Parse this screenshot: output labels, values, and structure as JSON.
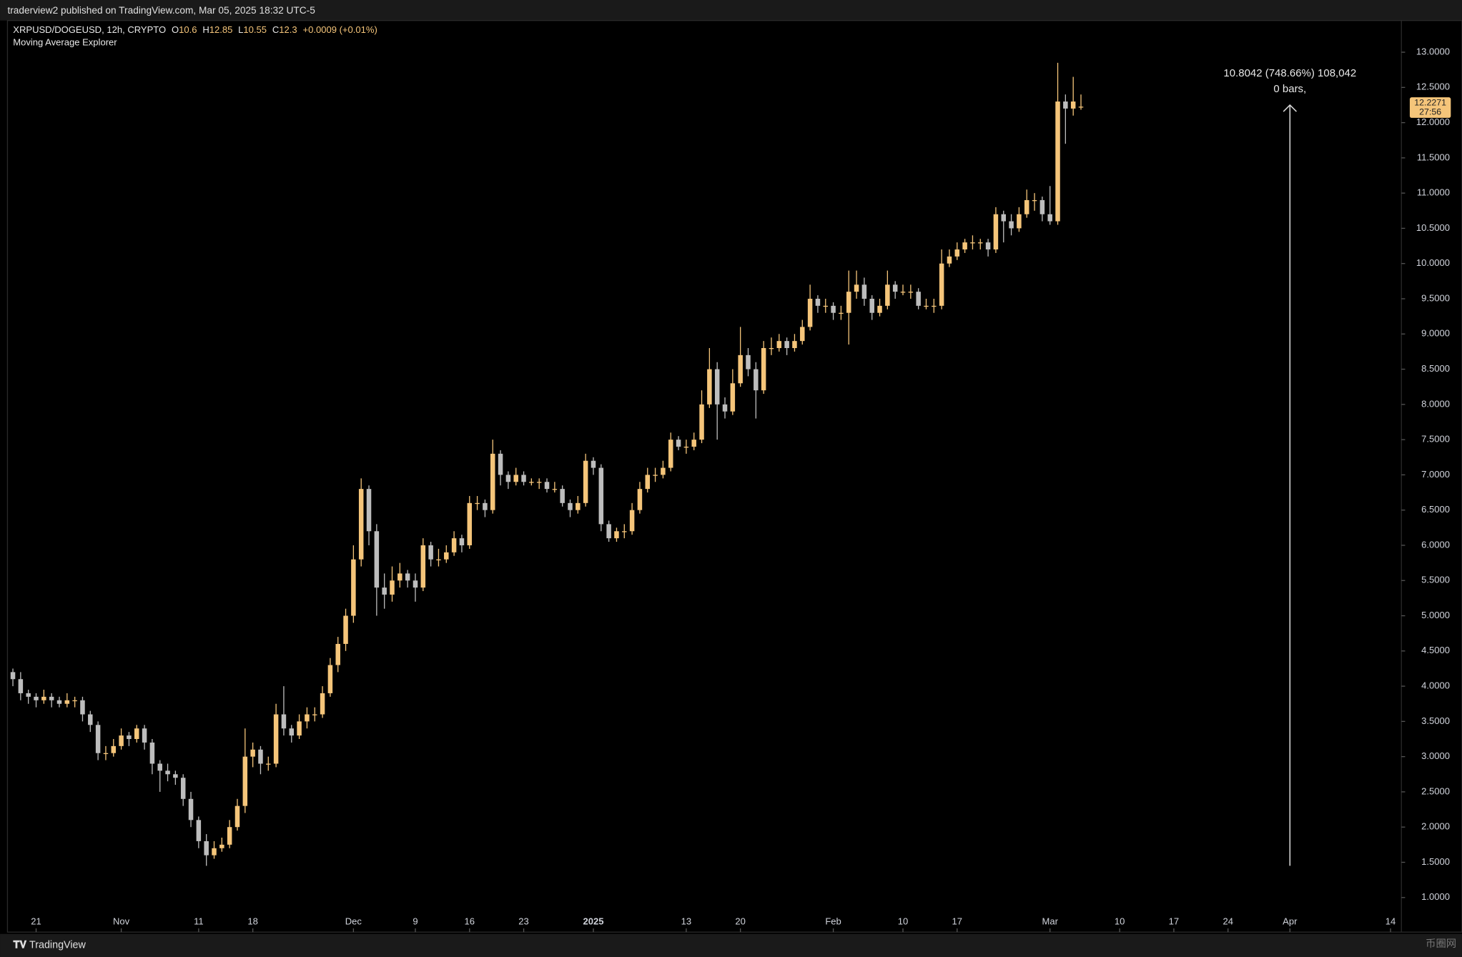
{
  "header": {
    "publisher": "traderview2 published on TradingView.com, Mar 05, 2025 18:32 UTC-5",
    "symbol": "XRPUSD/DOGEUSD, 12h, CRYPTO",
    "change": "+0.0009 (+0.01%)",
    "indicator": "Moving Average Explorer"
  },
  "chart_data": {
    "type": "candlestick",
    "ohlc_labels": [
      "O",
      "H",
      "L",
      "C"
    ],
    "up_color": "#f5c57a",
    "down_color": "#bdbdbd",
    "xlim": [
      -3.7,
      176.4
    ],
    "ylim": [
      0.8,
      13.45
    ],
    "xticks": [
      {
        "value": 0,
        "label": "21"
      },
      {
        "value": 11,
        "label": "Nov"
      },
      {
        "value": 21,
        "label": "11"
      },
      {
        "value": 28,
        "label": "18"
      },
      {
        "value": 41,
        "label": "Dec"
      },
      {
        "value": 49,
        "label": "9"
      },
      {
        "value": 56,
        "label": "16"
      },
      {
        "value": 63,
        "label": "23"
      },
      {
        "value": 72,
        "label": "2025"
      },
      {
        "value": 84,
        "label": "13"
      },
      {
        "value": 91,
        "label": "20"
      },
      {
        "value": 103,
        "label": "Feb"
      },
      {
        "value": 112,
        "label": "10"
      },
      {
        "value": 119,
        "label": "17"
      },
      {
        "value": 131,
        "label": "Mar"
      },
      {
        "value": 140,
        "label": "10"
      },
      {
        "value": 147,
        "label": "17"
      },
      {
        "value": 154,
        "label": "24"
      },
      {
        "value": 162,
        "label": "Apr"
      },
      {
        "value": 175,
        "label": "14"
      }
    ],
    "yticks": [
      {
        "value": 1,
        "label": "1.0000"
      },
      {
        "value": 1.5,
        "label": "1.5000"
      },
      {
        "value": 2,
        "label": "2.0000"
      },
      {
        "value": 2.5,
        "label": "2.5000"
      },
      {
        "value": 3,
        "label": "3.0000"
      },
      {
        "value": 3.5,
        "label": "3.5000"
      },
      {
        "value": 4,
        "label": "4.0000"
      },
      {
        "value": 4.5,
        "label": "4.5000"
      },
      {
        "value": 5,
        "label": "5.0000"
      },
      {
        "value": 5.5,
        "label": "5.5000"
      },
      {
        "value": 6,
        "label": "6.0000"
      },
      {
        "value": 6.5,
        "label": "6.5000"
      },
      {
        "value": 7,
        "label": "7.0000"
      },
      {
        "value": 7.5,
        "label": "7.5000"
      },
      {
        "value": 8,
        "label": "8.0000"
      },
      {
        "value": 8.5,
        "label": "8.5000"
      },
      {
        "value": 9,
        "label": "9.0000"
      },
      {
        "value": 9.5,
        "label": "9.5000"
      },
      {
        "value": 10,
        "label": "10.0000"
      },
      {
        "value": 10.5,
        "label": "10.5000"
      },
      {
        "value": 11,
        "label": "11.0000"
      },
      {
        "value": 11.5,
        "label": "11.5000"
      },
      {
        "value": 12,
        "label": "12.0000"
      },
      {
        "value": 12.5,
        "label": "12.5000"
      },
      {
        "value": 13,
        "label": "13.0000"
      }
    ],
    "x": [
      -3,
      -2,
      -1,
      0,
      1,
      2,
      3,
      4,
      5,
      6,
      7,
      8,
      9,
      10,
      11,
      12,
      13,
      14,
      15,
      16,
      17,
      18,
      19,
      20,
      21,
      22,
      23,
      24,
      25,
      26,
      27,
      28,
      29,
      30,
      31,
      32,
      33,
      34,
      35,
      36,
      37,
      38,
      39,
      40,
      41,
      42,
      43,
      44,
      45,
      46,
      47,
      48,
      49,
      50,
      51,
      52,
      53,
      54,
      55,
      56,
      57,
      58,
      59,
      60,
      61,
      62,
      63,
      64,
      65,
      66,
      67,
      68,
      69,
      70,
      71,
      72,
      73,
      74,
      75,
      76,
      77,
      78,
      79,
      80,
      81,
      82,
      83,
      84,
      85,
      86,
      87,
      88,
      89,
      90,
      91,
      92,
      93,
      94,
      95,
      96,
      97,
      98,
      99,
      100,
      101,
      102,
      103,
      104,
      105,
      106,
      107,
      108,
      109,
      110,
      111,
      112,
      113,
      114,
      115,
      116,
      117,
      118,
      119,
      120,
      121,
      122,
      123,
      124,
      125,
      126,
      127,
      128,
      129,
      130,
      131,
      132,
      133,
      134,
      135
    ],
    "candles": [
      [
        4.2,
        4.25,
        4.0,
        4.1
      ],
      [
        4.1,
        4.2,
        3.8,
        3.9
      ],
      [
        3.9,
        3.95,
        3.75,
        3.85
      ],
      [
        3.85,
        3.9,
        3.7,
        3.8
      ],
      [
        3.8,
        3.95,
        3.75,
        3.85
      ],
      [
        3.85,
        3.9,
        3.7,
        3.8
      ],
      [
        3.8,
        3.85,
        3.7,
        3.75
      ],
      [
        3.75,
        3.9,
        3.7,
        3.8
      ],
      [
        3.8,
        3.85,
        3.7,
        3.8
      ],
      [
        3.8,
        3.85,
        3.5,
        3.6
      ],
      [
        3.6,
        3.65,
        3.35,
        3.45
      ],
      [
        3.45,
        3.5,
        2.95,
        3.05
      ],
      [
        3.05,
        3.15,
        2.95,
        3.05
      ],
      [
        3.05,
        3.25,
        3.0,
        3.15
      ],
      [
        3.15,
        3.4,
        3.1,
        3.3
      ],
      [
        3.3,
        3.35,
        3.15,
        3.25
      ],
      [
        3.25,
        3.45,
        3.2,
        3.4
      ],
      [
        3.4,
        3.45,
        3.1,
        3.2
      ],
      [
        3.2,
        3.25,
        2.75,
        2.9
      ],
      [
        2.9,
        2.95,
        2.5,
        2.8
      ],
      [
        2.8,
        2.9,
        2.65,
        2.75
      ],
      [
        2.75,
        2.8,
        2.6,
        2.7
      ],
      [
        2.7,
        2.75,
        2.3,
        2.4
      ],
      [
        2.4,
        2.5,
        2.0,
        2.1
      ],
      [
        2.1,
        2.15,
        1.7,
        1.8
      ],
      [
        1.8,
        1.9,
        1.45,
        1.6
      ],
      [
        1.6,
        1.8,
        1.55,
        1.7
      ],
      [
        1.7,
        1.85,
        1.65,
        1.75
      ],
      [
        1.75,
        2.1,
        1.7,
        2.0
      ],
      [
        2.0,
        2.4,
        1.95,
        2.3
      ],
      [
        2.3,
        3.4,
        2.2,
        3.0
      ],
      [
        3.0,
        3.2,
        2.85,
        3.1
      ],
      [
        3.1,
        3.15,
        2.75,
        2.9
      ],
      [
        2.9,
        3.0,
        2.8,
        2.9
      ],
      [
        2.9,
        3.75,
        2.85,
        3.6
      ],
      [
        3.6,
        4.0,
        3.3,
        3.4
      ],
      [
        3.4,
        3.45,
        3.2,
        3.3
      ],
      [
        3.3,
        3.6,
        3.25,
        3.5
      ],
      [
        3.5,
        3.7,
        3.4,
        3.6
      ],
      [
        3.6,
        3.7,
        3.5,
        3.6
      ],
      [
        3.6,
        4.0,
        3.55,
        3.9
      ],
      [
        3.9,
        4.4,
        3.85,
        4.3
      ],
      [
        4.3,
        4.7,
        4.2,
        4.6
      ],
      [
        4.6,
        5.1,
        4.5,
        5.0
      ],
      [
        5.0,
        6.0,
        4.9,
        5.8
      ],
      [
        5.8,
        6.95,
        5.7,
        6.8
      ],
      [
        6.8,
        6.85,
        6.0,
        6.2
      ],
      [
        6.2,
        6.3,
        5.0,
        5.4
      ],
      [
        5.4,
        5.6,
        5.1,
        5.3
      ],
      [
        5.3,
        5.7,
        5.2,
        5.5
      ],
      [
        5.5,
        5.75,
        5.4,
        5.6
      ],
      [
        5.6,
        5.65,
        5.4,
        5.5
      ],
      [
        5.5,
        5.6,
        5.2,
        5.4
      ],
      [
        5.4,
        6.1,
        5.35,
        6.0
      ],
      [
        6.0,
        6.05,
        5.7,
        5.8
      ],
      [
        5.8,
        5.95,
        5.7,
        5.8
      ],
      [
        5.8,
        6.0,
        5.75,
        5.9
      ],
      [
        5.9,
        6.2,
        5.85,
        6.1
      ],
      [
        6.1,
        6.15,
        5.9,
        6.0
      ],
      [
        6.0,
        6.7,
        5.95,
        6.6
      ],
      [
        6.6,
        6.7,
        6.5,
        6.6
      ],
      [
        6.6,
        6.65,
        6.4,
        6.5
      ],
      [
        6.5,
        7.5,
        6.45,
        7.3
      ],
      [
        7.3,
        7.35,
        6.85,
        7.0
      ],
      [
        7.0,
        7.05,
        6.8,
        6.9
      ],
      [
        6.9,
        7.1,
        6.85,
        7.0
      ],
      [
        7.0,
        7.05,
        6.85,
        6.9
      ],
      [
        6.9,
        6.95,
        6.85,
        6.9
      ],
      [
        6.9,
        6.95,
        6.8,
        6.9
      ],
      [
        6.9,
        6.95,
        6.75,
        6.8
      ],
      [
        6.8,
        6.9,
        6.75,
        6.8
      ],
      [
        6.8,
        6.85,
        6.55,
        6.6
      ],
      [
        6.6,
        6.65,
        6.4,
        6.5
      ],
      [
        6.5,
        6.7,
        6.45,
        6.6
      ],
      [
        6.6,
        7.3,
        6.55,
        7.2
      ],
      [
        7.2,
        7.25,
        7.0,
        7.1
      ],
      [
        7.1,
        7.15,
        6.2,
        6.3
      ],
      [
        6.3,
        6.35,
        6.05,
        6.1
      ],
      [
        6.1,
        6.25,
        6.05,
        6.2
      ],
      [
        6.2,
        6.3,
        6.1,
        6.2
      ],
      [
        6.2,
        6.6,
        6.15,
        6.5
      ],
      [
        6.5,
        6.9,
        6.45,
        6.8
      ],
      [
        6.8,
        7.1,
        6.75,
        7.0
      ],
      [
        7.0,
        7.1,
        6.9,
        7.0
      ],
      [
        7.0,
        7.2,
        6.95,
        7.1
      ],
      [
        7.1,
        7.6,
        7.05,
        7.5
      ],
      [
        7.5,
        7.55,
        7.35,
        7.4
      ],
      [
        7.4,
        7.5,
        7.3,
        7.4
      ],
      [
        7.4,
        7.6,
        7.35,
        7.5
      ],
      [
        7.5,
        8.2,
        7.45,
        8.0
      ],
      [
        8.0,
        8.8,
        7.95,
        8.5
      ],
      [
        8.5,
        8.6,
        7.5,
        8.0
      ],
      [
        8.0,
        8.1,
        7.8,
        7.9
      ],
      [
        7.9,
        8.5,
        7.85,
        8.3
      ],
      [
        8.3,
        9.1,
        8.25,
        8.7
      ],
      [
        8.7,
        8.8,
        8.4,
        8.5
      ],
      [
        8.5,
        8.6,
        7.8,
        8.2
      ],
      [
        8.2,
        8.9,
        8.15,
        8.8
      ],
      [
        8.8,
        8.95,
        8.7,
        8.8
      ],
      [
        8.8,
        9.0,
        8.75,
        8.9
      ],
      [
        8.9,
        8.95,
        8.7,
        8.8
      ],
      [
        8.8,
        9.0,
        8.75,
        8.9
      ],
      [
        8.9,
        9.2,
        8.85,
        9.1
      ],
      [
        9.1,
        9.7,
        9.05,
        9.5
      ],
      [
        9.5,
        9.55,
        9.3,
        9.4
      ],
      [
        9.4,
        9.5,
        9.3,
        9.4
      ],
      [
        9.4,
        9.45,
        9.2,
        9.3
      ],
      [
        9.3,
        9.4,
        9.2,
        9.3
      ],
      [
        9.3,
        9.9,
        8.85,
        9.6
      ],
      [
        9.6,
        9.9,
        9.5,
        9.7
      ],
      [
        9.7,
        9.8,
        9.4,
        9.5
      ],
      [
        9.5,
        9.55,
        9.2,
        9.3
      ],
      [
        9.3,
        9.5,
        9.25,
        9.4
      ],
      [
        9.4,
        9.9,
        9.35,
        9.7
      ],
      [
        9.7,
        9.75,
        9.5,
        9.6
      ],
      [
        9.6,
        9.7,
        9.55,
        9.6
      ],
      [
        9.6,
        9.7,
        9.5,
        9.6
      ],
      [
        9.6,
        9.65,
        9.35,
        9.4
      ],
      [
        9.4,
        9.5,
        9.35,
        9.4
      ],
      [
        9.4,
        9.5,
        9.3,
        9.4
      ],
      [
        9.4,
        10.2,
        9.35,
        10.0
      ],
      [
        10.0,
        10.2,
        9.95,
        10.1
      ],
      [
        10.1,
        10.3,
        10.05,
        10.2
      ],
      [
        10.2,
        10.35,
        10.15,
        10.3
      ],
      [
        10.3,
        10.4,
        10.2,
        10.3
      ],
      [
        10.3,
        10.35,
        10.2,
        10.3
      ],
      [
        10.3,
        10.35,
        10.1,
        10.2
      ],
      [
        10.2,
        10.8,
        10.15,
        10.7
      ],
      [
        10.7,
        10.75,
        10.3,
        10.6
      ],
      [
        10.6,
        10.7,
        10.4,
        10.5
      ],
      [
        10.5,
        10.8,
        10.45,
        10.7
      ],
      [
        10.7,
        11.05,
        10.65,
        10.9
      ],
      [
        10.9,
        11.0,
        10.75,
        10.9
      ],
      [
        10.9,
        10.95,
        10.6,
        10.7
      ],
      [
        10.7,
        11.1,
        10.55,
        10.6
      ],
      [
        10.6,
        12.85,
        10.55,
        12.3
      ],
      [
        12.3,
        12.4,
        11.7,
        12.2
      ],
      [
        12.2,
        12.65,
        12.1,
        12.3
      ],
      [
        12.2262,
        12.3995,
        12.1833,
        12.2271
      ]
    ],
    "countdown": "27:56",
    "measure": {
      "x": 162,
      "from": 1.45,
      "to": 12.25,
      "label": "10.8042 (748.66%) 108,042",
      "sublabel": "0 bars,"
    }
  },
  "footer": {
    "brand": "TradingView",
    "watermark": "币圈网"
  }
}
